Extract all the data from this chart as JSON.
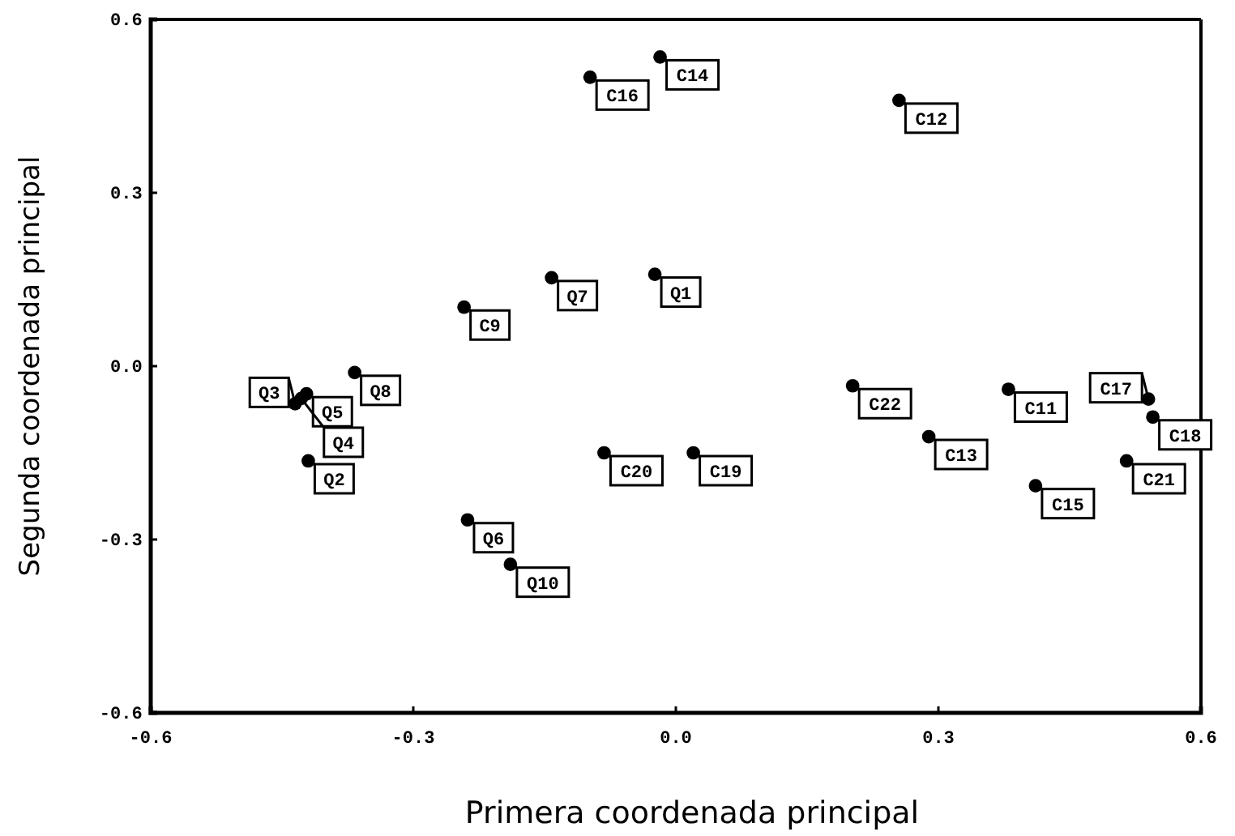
{
  "chart_data": {
    "type": "scatter",
    "xlabel": "Primera coordenada principal",
    "ylabel": "Segunda coordenada principal",
    "xlim": [
      -0.6,
      0.6
    ],
    "ylim": [
      -0.6,
      0.6
    ],
    "xticks": [
      {
        "value": -0.6,
        "label": "-0.6"
      },
      {
        "value": -0.3,
        "label": "-0.3"
      },
      {
        "value": 0,
        "label": "0.0"
      },
      {
        "value": 0.3,
        "label": "0.3"
      },
      {
        "value": 0.6,
        "label": "0.6"
      }
    ],
    "yticks": [
      {
        "value": -0.6,
        "label": "-0.6"
      },
      {
        "value": -0.3,
        "label": "-0.3"
      },
      {
        "value": 0,
        "label": "0.0"
      },
      {
        "value": 0.3,
        "label": "0.3"
      },
      {
        "value": 0.6,
        "label": "0.6"
      }
    ],
    "marker": "circle",
    "series": [
      {
        "color": "#000000",
        "x": [
          -0.098,
          -0.018,
          0.255,
          -0.142,
          -0.024,
          -0.242,
          -0.367,
          -0.422,
          -0.428,
          -0.435,
          -0.42,
          -0.082,
          -0.238,
          -0.189,
          0.02,
          0.202,
          0.38,
          0.289,
          0.411,
          0.54,
          0.545,
          0.515
        ],
        "values": [
          0.5,
          0.535,
          0.46,
          0.153,
          0.159,
          0.102,
          -0.011,
          -0.048,
          -0.056,
          -0.065,
          -0.164,
          -0.15,
          -0.266,
          -0.343,
          -0.15,
          -0.034,
          -0.04,
          -0.122,
          -0.207,
          -0.057,
          -0.088,
          -0.164
        ],
        "value_labels": [
          "C16",
          "C14",
          "C12",
          "Q7",
          "Q1",
          "C9",
          "Q8",
          "Q5",
          "Q4",
          "Q3",
          "Q2",
          "C20",
          "Q6",
          "Q10",
          "C19",
          "C22",
          "C11",
          "C13",
          "C15",
          "C17",
          "C18",
          "C21"
        ]
      }
    ]
  }
}
